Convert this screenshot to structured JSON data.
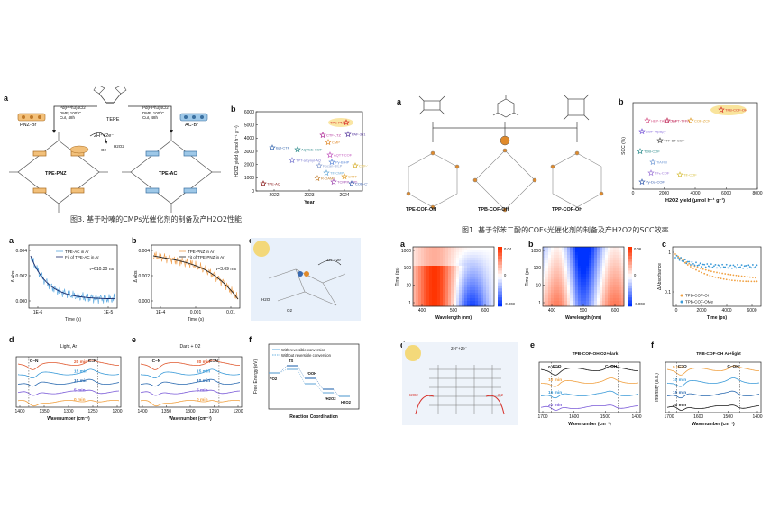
{
  "left_figure": {
    "top": {
      "a_label": "a",
      "b_label": "b",
      "reagents_left": [
        "Pd(PPh3)4Cl2",
        "DMF, 100°C",
        "CuI, 48h"
      ],
      "reagents_right": [
        "Pd(PPh3)4Cl2",
        "DMF, 100°C",
        "CuI, 48h"
      ],
      "pnz_br": "PNZ-Br",
      "tepe": "TEPE",
      "ac_br": "AC-Br",
      "tpe_pnz": "TPE-PNZ",
      "tpe_ac": "TPE-AC",
      "redox": "2H⁺+2e⁻",
      "o2": "O2",
      "h2o2": "H2O2",
      "b_chart": {
        "ylabel": "H2O2 yield (μmol h⁻¹ g⁻¹)",
        "xlabel": "Year",
        "yticks": [
          "0",
          "1000",
          "2000",
          "3000",
          "4000",
          "5000",
          "6000"
        ],
        "xticks": [
          "2022",
          "2023",
          "2024"
        ],
        "points": [
          {
            "name": "TPE-PNZ",
            "color": "#d7302a"
          },
          {
            "name": "PAF-361",
            "color": "#5b3ea0"
          },
          {
            "name": "CMP",
            "color": "#e08a2b"
          },
          {
            "name": "CTF-LTZ",
            "color": "#b2319a"
          },
          {
            "name": "AQTEE-COF",
            "color": "#2b8a8a"
          },
          {
            "name": "AQTT-COF",
            "color": "#c45bc0"
          },
          {
            "name": "Bpt-CTF",
            "color": "#3a6ab0"
          },
          {
            "name": "TPT-alkynyl-AQ",
            "color": "#7a7ad0"
          },
          {
            "name": "Py-BIHP",
            "color": "#5f8ad8"
          },
          {
            "name": "Pocan-BILP",
            "color": "#8aa0d0"
          },
          {
            "name": "Tfr-CMP",
            "color": "#6aaad8"
          },
          {
            "name": "CTF-TD",
            "color": "#d8b030"
          },
          {
            "name": "CTTF",
            "color": "#e0a030"
          },
          {
            "name": "R-OAMP",
            "color": "#c07a2a"
          },
          {
            "name": "TCFPP-TPD",
            "color": "#a04ab0"
          },
          {
            "name": "COD-CTF",
            "color": "#3a60b0"
          },
          {
            "name": "TPE-AQ",
            "color": "#8a1a1a"
          }
        ]
      },
      "caption": "图3. 基于吩嗪的CMPs光催化剂的制备及产H2O2性能"
    },
    "bottom": {
      "a": {
        "label": "a",
        "legend": [
          "TPE-AC in Ar",
          "Fit of TPE-AC in Ar"
        ],
        "tau": "τ=610.30 ns",
        "ylabel": "Δ Abs",
        "xlabel": "Time (s)",
        "yticks": [
          "0.004",
          "0.002",
          "0.000"
        ],
        "xticks": [
          "1E-6",
          "1E-5"
        ]
      },
      "b": {
        "label": "b",
        "legend": [
          "TPE-PNZ in Ar",
          "Fit of TPE-PNZ in Ar"
        ],
        "tau": "τ=3.09 ms",
        "ylabel": "Δ Abs",
        "xlabel": "Time (s)",
        "yticks": [
          "0.004",
          "0.002",
          "0.000"
        ],
        "xticks": [
          "1E-4",
          "0.001",
          "0.01"
        ]
      },
      "c": {
        "label": "c",
        "texts": [
          "2H⁺+2e⁻",
          "H2O",
          "O2"
        ]
      },
      "d": {
        "label": "d",
        "condition": "Light, Ar",
        "times": [
          "20 min",
          "15 min",
          "10 min",
          "5 min",
          "0 min"
        ],
        "peaks": [
          "C–N",
          "C=N"
        ],
        "xlabel": "Wavenumber (cm⁻¹)",
        "xticks": [
          "1400",
          "1350",
          "1300",
          "1250",
          "1200"
        ]
      },
      "e": {
        "label": "e",
        "condition": "Dark + O2",
        "times": [
          "20 min",
          "15 min",
          "10 min",
          "5 min",
          "0 min"
        ],
        "peaks": [
          "C–N",
          "C=N"
        ],
        "xlabel": "Wavenumber (cm⁻¹)",
        "xticks": [
          "1400",
          "1350",
          "1300",
          "1250",
          "1200"
        ]
      },
      "f": {
        "label": "f",
        "legend": [
          "With reversible conversion",
          "Without reversible conversion"
        ],
        "ylabel": "Free Energy (eV)",
        "xlabel": "Reaction Coordination",
        "states": [
          "*O2",
          "TS",
          "*OOH",
          "*H2O2",
          "H2O2"
        ]
      }
    }
  },
  "right_figure": {
    "top": {
      "a_label": "a",
      "b_label": "b",
      "products": [
        "TPE-COF-OH",
        "TPB-COF-OH",
        "TPP-COF-OH"
      ],
      "b_chart": {
        "ylabel": "SCC (%)",
        "xlabel": "H2O2 yield (μmol h⁻¹ g⁻¹)",
        "xticks": [
          "0",
          "2000",
          "4000",
          "6000",
          "8000"
        ],
        "points": [
          {
            "name": "TPB-COF-OH",
            "color": "#d7302a"
          },
          {
            "name": "HEP-TAPT-COF",
            "color": "#d75a8a"
          },
          {
            "name": "TAPT-TFPA",
            "color": "#c0305a"
          },
          {
            "name": "COF-ZCN",
            "color": "#e0a030"
          },
          {
            "name": "COF-TfpBpy",
            "color": "#7a5ad8"
          },
          {
            "name": "TTF-BT-COF",
            "color": "#555555"
          },
          {
            "name": "TDB-COF",
            "color": "#2b8a8a"
          },
          {
            "name": "TiAFBI",
            "color": "#7aa0d8"
          },
          {
            "name": "TF₅-COF",
            "color": "#a07ad8"
          },
          {
            "name": "Tfr-COF",
            "color": "#d8c040"
          },
          {
            "name": "Py-Da-COF",
            "color": "#3a60b0"
          }
        ]
      },
      "caption": "图1. 基于邻苯二酚的COFs光催化剂的制备及产H2O2的SCC效率"
    },
    "bottom": {
      "a": {
        "label": "a",
        "ylabel": "Time (ps)",
        "xlabel": "Wavelength (nm)",
        "yticks": [
          "1000",
          "100",
          "10",
          "1"
        ],
        "xticks": [
          "400",
          "500",
          "600"
        ],
        "cbar": [
          "0.04",
          "0",
          "-0.003"
        ]
      },
      "b": {
        "label": "b",
        "ylabel": "Time (ps)",
        "xlabel": "Wavelength (nm)",
        "yticks": [
          "1000",
          "100",
          "10",
          "1"
        ],
        "xticks": [
          "400",
          "500",
          "600"
        ],
        "cbar": [
          "0.06",
          "0",
          "-0.003"
        ]
      },
      "c": {
        "label": "c",
        "ylabel": "ΔAbsorbance",
        "xlabel": "Time (ps)",
        "xticks": [
          "0",
          "2000",
          "4000",
          "6000"
        ],
        "yticks": [
          "1",
          "0.1"
        ],
        "legend": [
          "TPB-COF-OH",
          "TPB-COF-OMe"
        ]
      },
      "d": {
        "label": "d",
        "texts": [
          "H2O2",
          "O2",
          "2H⁺+2e⁻"
        ]
      },
      "e": {
        "label": "e",
        "title": "TPB-COF-OH O2+dark",
        "times": [
          "0 min",
          "10 min",
          "15 min",
          "20 min"
        ],
        "peaks": [
          "C=O",
          "C–OH"
        ],
        "xlabel": "Wavenumber (cm⁻¹)",
        "xticks": [
          "1700",
          "1600",
          "1500",
          "1400"
        ]
      },
      "f": {
        "label": "f",
        "title": "TPB-COF-OH Ar+light",
        "times": [
          "5 min",
          "10 min",
          "15 min",
          "20 min"
        ],
        "peaks": [
          "C=O",
          "C–OH"
        ],
        "ylabel": "Intensity (a.u.)",
        "xlabel": "Wavenumber (cm⁻¹)",
        "xticks": [
          "1700",
          "1600",
          "1500",
          "1400"
        ]
      }
    }
  }
}
